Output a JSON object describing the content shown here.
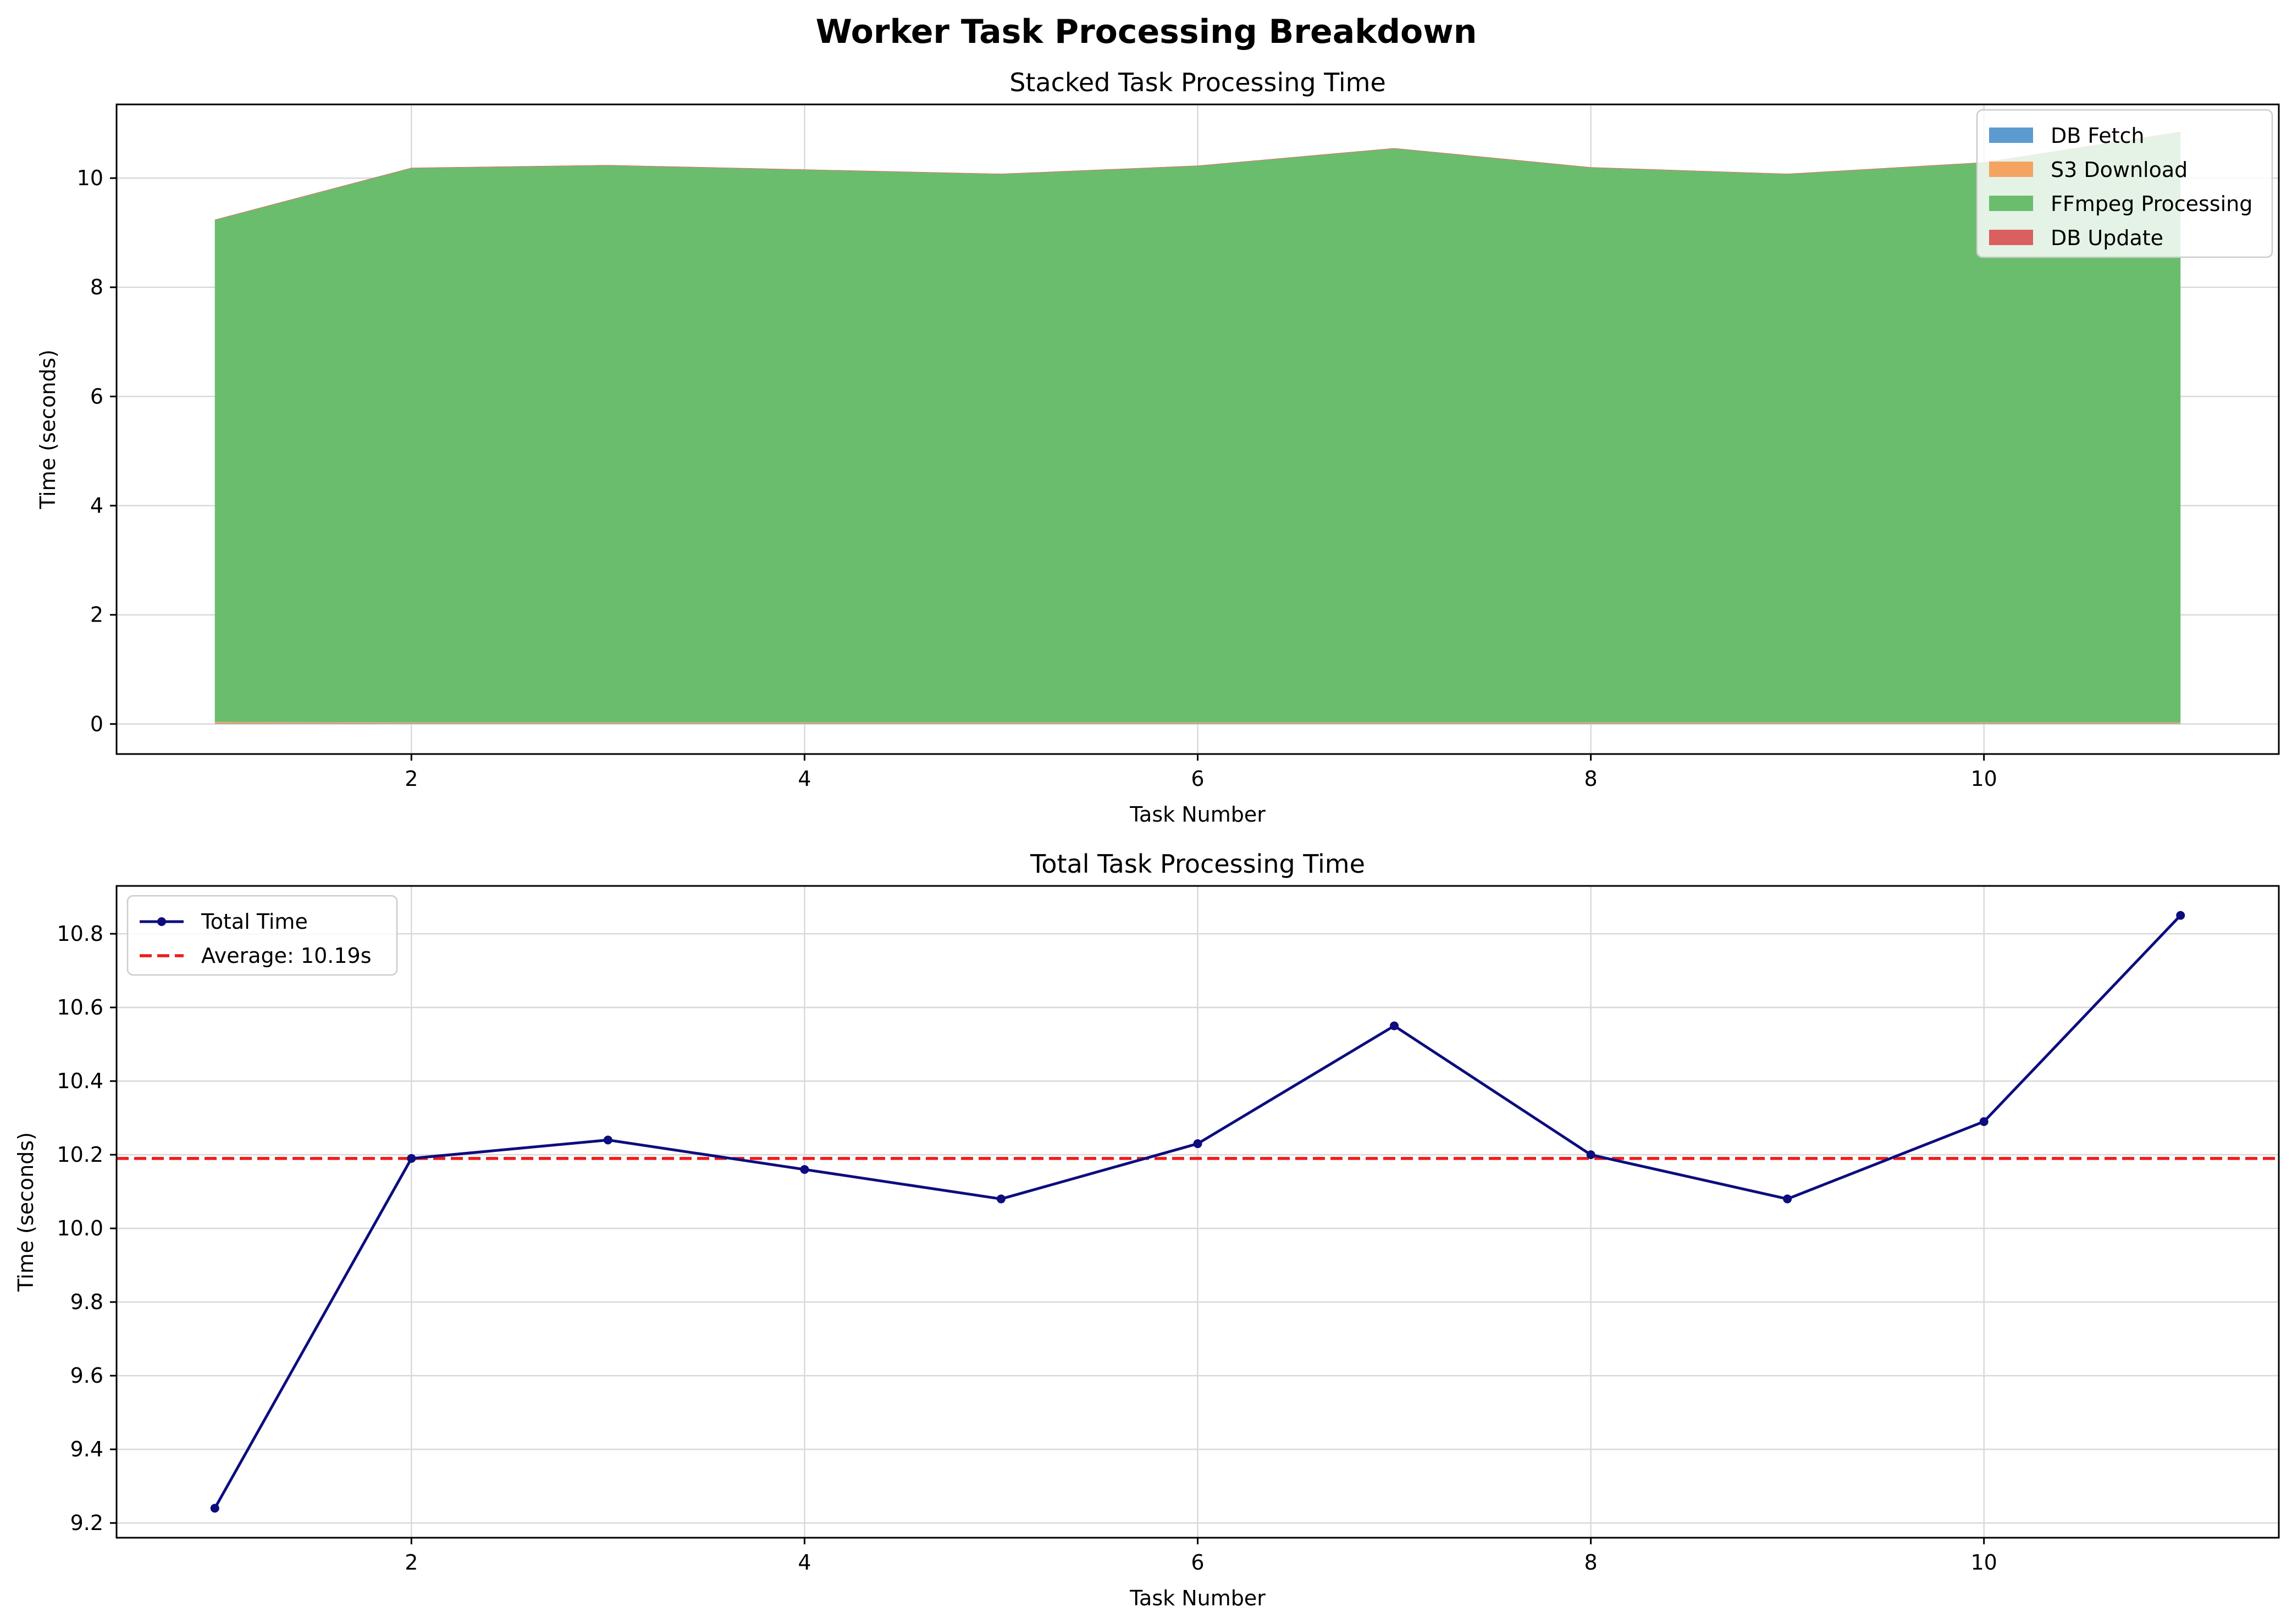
{
  "figure": {
    "suptitle": "Worker Task Processing Breakdown"
  },
  "colors": {
    "grid": "#d9d9d9",
    "axis": "#000000",
    "db_fetch": "#5b9bd0",
    "s3_download": "#f4a460",
    "ffmpeg": "#6abd6d",
    "db_update": "#d9605e",
    "total_line": "#0d0d7e",
    "average_line": "#ef1b1b"
  },
  "chart_data": [
    {
      "type": "area",
      "stacked": true,
      "title": "Stacked Task Processing Time",
      "xlabel": "Task Number",
      "ylabel": "Time (seconds)",
      "xlim": [
        0.5,
        11.5
      ],
      "ylim": [
        -0.55,
        11.35
      ],
      "xticks": [
        2,
        4,
        6,
        8,
        10
      ],
      "yticks": [
        0,
        2,
        4,
        6,
        8,
        10
      ],
      "grid": true,
      "legend": "top-right",
      "x": [
        1,
        2,
        3,
        4,
        5,
        6,
        7,
        8,
        9,
        10,
        11
      ],
      "series": [
        {
          "name": "DB Fetch",
          "color_key": "db_fetch",
          "values": [
            0.01,
            0.01,
            0.01,
            0.01,
            0.01,
            0.01,
            0.01,
            0.01,
            0.01,
            0.01,
            0.01
          ]
        },
        {
          "name": "S3 Download",
          "color_key": "s3_download",
          "values": [
            0.03,
            0.02,
            0.02,
            0.02,
            0.02,
            0.02,
            0.02,
            0.02,
            0.02,
            0.02,
            0.02
          ]
        },
        {
          "name": "FFmpeg Processing",
          "color_key": "ffmpeg",
          "values": [
            9.19,
            10.15,
            10.2,
            10.12,
            10.04,
            10.19,
            10.51,
            10.16,
            10.04,
            10.25,
            10.81
          ]
        },
        {
          "name": "DB Update",
          "color_key": "db_update",
          "values": [
            0.01,
            0.01,
            0.01,
            0.01,
            0.01,
            0.01,
            0.01,
            0.01,
            0.01,
            0.01,
            0.01
          ]
        }
      ]
    },
    {
      "type": "line",
      "title": "Total Task Processing Time",
      "xlabel": "Task Number",
      "ylabel": "Time (seconds)",
      "xlim": [
        0.5,
        11.5
      ],
      "ylim": [
        9.16,
        10.93
      ],
      "xticks": [
        2,
        4,
        6,
        8,
        10
      ],
      "yticks": [
        9.2,
        9.4,
        9.6,
        9.8,
        10.0,
        10.2,
        10.4,
        10.6,
        10.8
      ],
      "grid": true,
      "legend": "top-left",
      "x": [
        1,
        2,
        3,
        4,
        5,
        6,
        7,
        8,
        9,
        10,
        11
      ],
      "series": [
        {
          "name": "Total Time",
          "color_key": "total_line",
          "values": [
            9.24,
            10.19,
            10.24,
            10.16,
            10.08,
            10.23,
            10.55,
            10.2,
            10.08,
            10.29,
            10.85
          ]
        }
      ],
      "reference_line": {
        "name": "Average: 10.19s",
        "color_key": "average_line",
        "value": 10.19
      }
    }
  ]
}
